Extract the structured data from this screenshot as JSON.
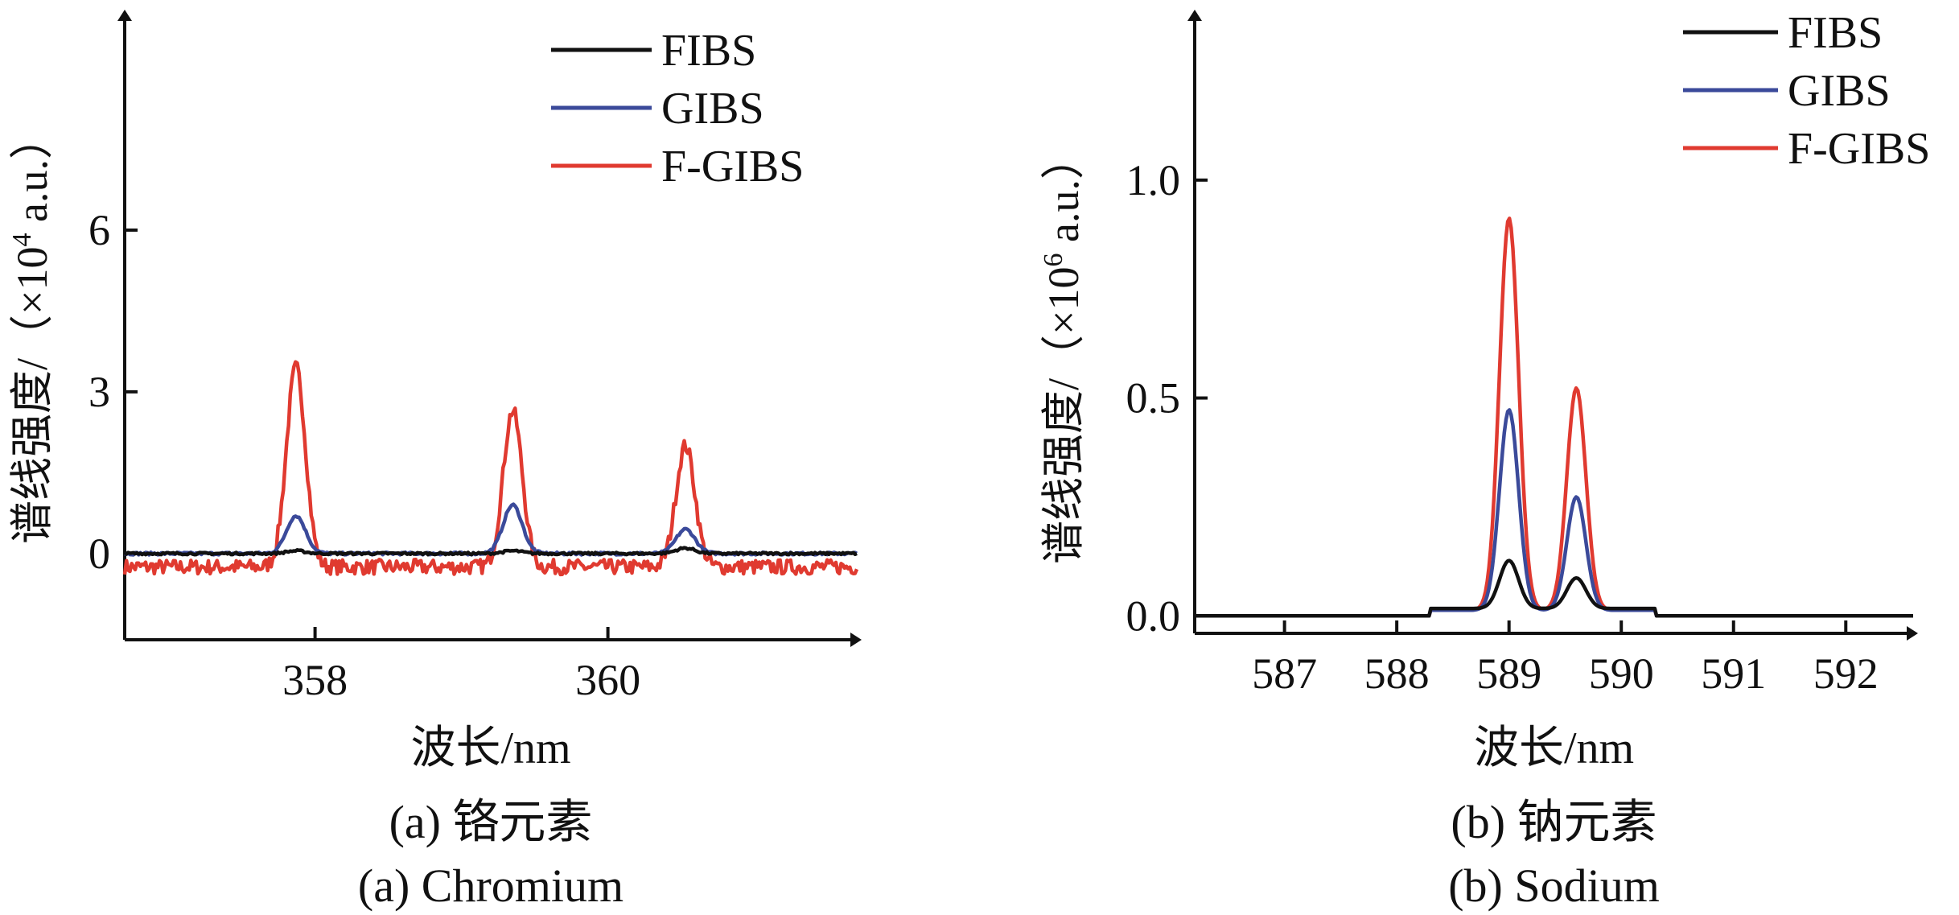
{
  "chart_data": [
    {
      "type": "line",
      "xlabel": "波长/nm",
      "ylabel_main": "谱线强度/（×10",
      "ylabel_exp": "4",
      "ylabel_tail": " a.u.）",
      "caption_cn": "(a) 铬元素",
      "caption_en": "(a) Chromium",
      "xlim": [
        356.7,
        361.7
      ],
      "ylim": [
        -1.6,
        10.0
      ],
      "xticks": [
        358,
        360
      ],
      "xtick_labels": [
        "358",
        "360"
      ],
      "yticks": [
        0,
        3,
        6
      ],
      "ytick_labels": [
        "0",
        "3",
        "6"
      ],
      "legend_position": "top-right",
      "peaks": [
        357.87,
        359.35,
        360.53
      ],
      "series": [
        {
          "name": "FIBS",
          "color": "#111111",
          "values": [
            0.05,
            0.05,
            0.1
          ]
        },
        {
          "name": "GIBS",
          "color": "#3b4a9a",
          "values": [
            0.7,
            0.9,
            0.45
          ]
        },
        {
          "name": "F-GIBS",
          "color": "#e03a30",
          "values": [
            3.7,
            2.9,
            2.25
          ]
        }
      ]
    },
    {
      "type": "line",
      "xlabel": "波长/nm",
      "ylabel_main": "谱线强度/（×10",
      "ylabel_exp": "6",
      "ylabel_tail": " a.u.）",
      "caption_cn": "(b) 钠元素",
      "caption_en": "(b) Sodium",
      "xlim": [
        586.2,
        592.6
      ],
      "ylim": [
        -0.04,
        1.38
      ],
      "xticks": [
        587,
        588,
        589,
        590,
        591,
        592
      ],
      "xtick_labels": [
        "587",
        "588",
        "589",
        "590",
        "591",
        "592"
      ],
      "yticks": [
        0.0,
        0.5,
        1.0
      ],
      "ytick_labels": [
        "0.0",
        "0.5",
        "1.0"
      ],
      "legend_position": "top-right",
      "peaks": [
        589.0,
        589.6
      ],
      "series": [
        {
          "name": "FIBS",
          "color": "#111111",
          "values": [
            0.11,
            0.07
          ]
        },
        {
          "name": "GIBS",
          "color": "#3b4a9a",
          "values": [
            0.46,
            0.26
          ]
        },
        {
          "name": "F-GIBS",
          "color": "#e03a30",
          "values": [
            0.9,
            0.51
          ]
        }
      ]
    }
  ]
}
